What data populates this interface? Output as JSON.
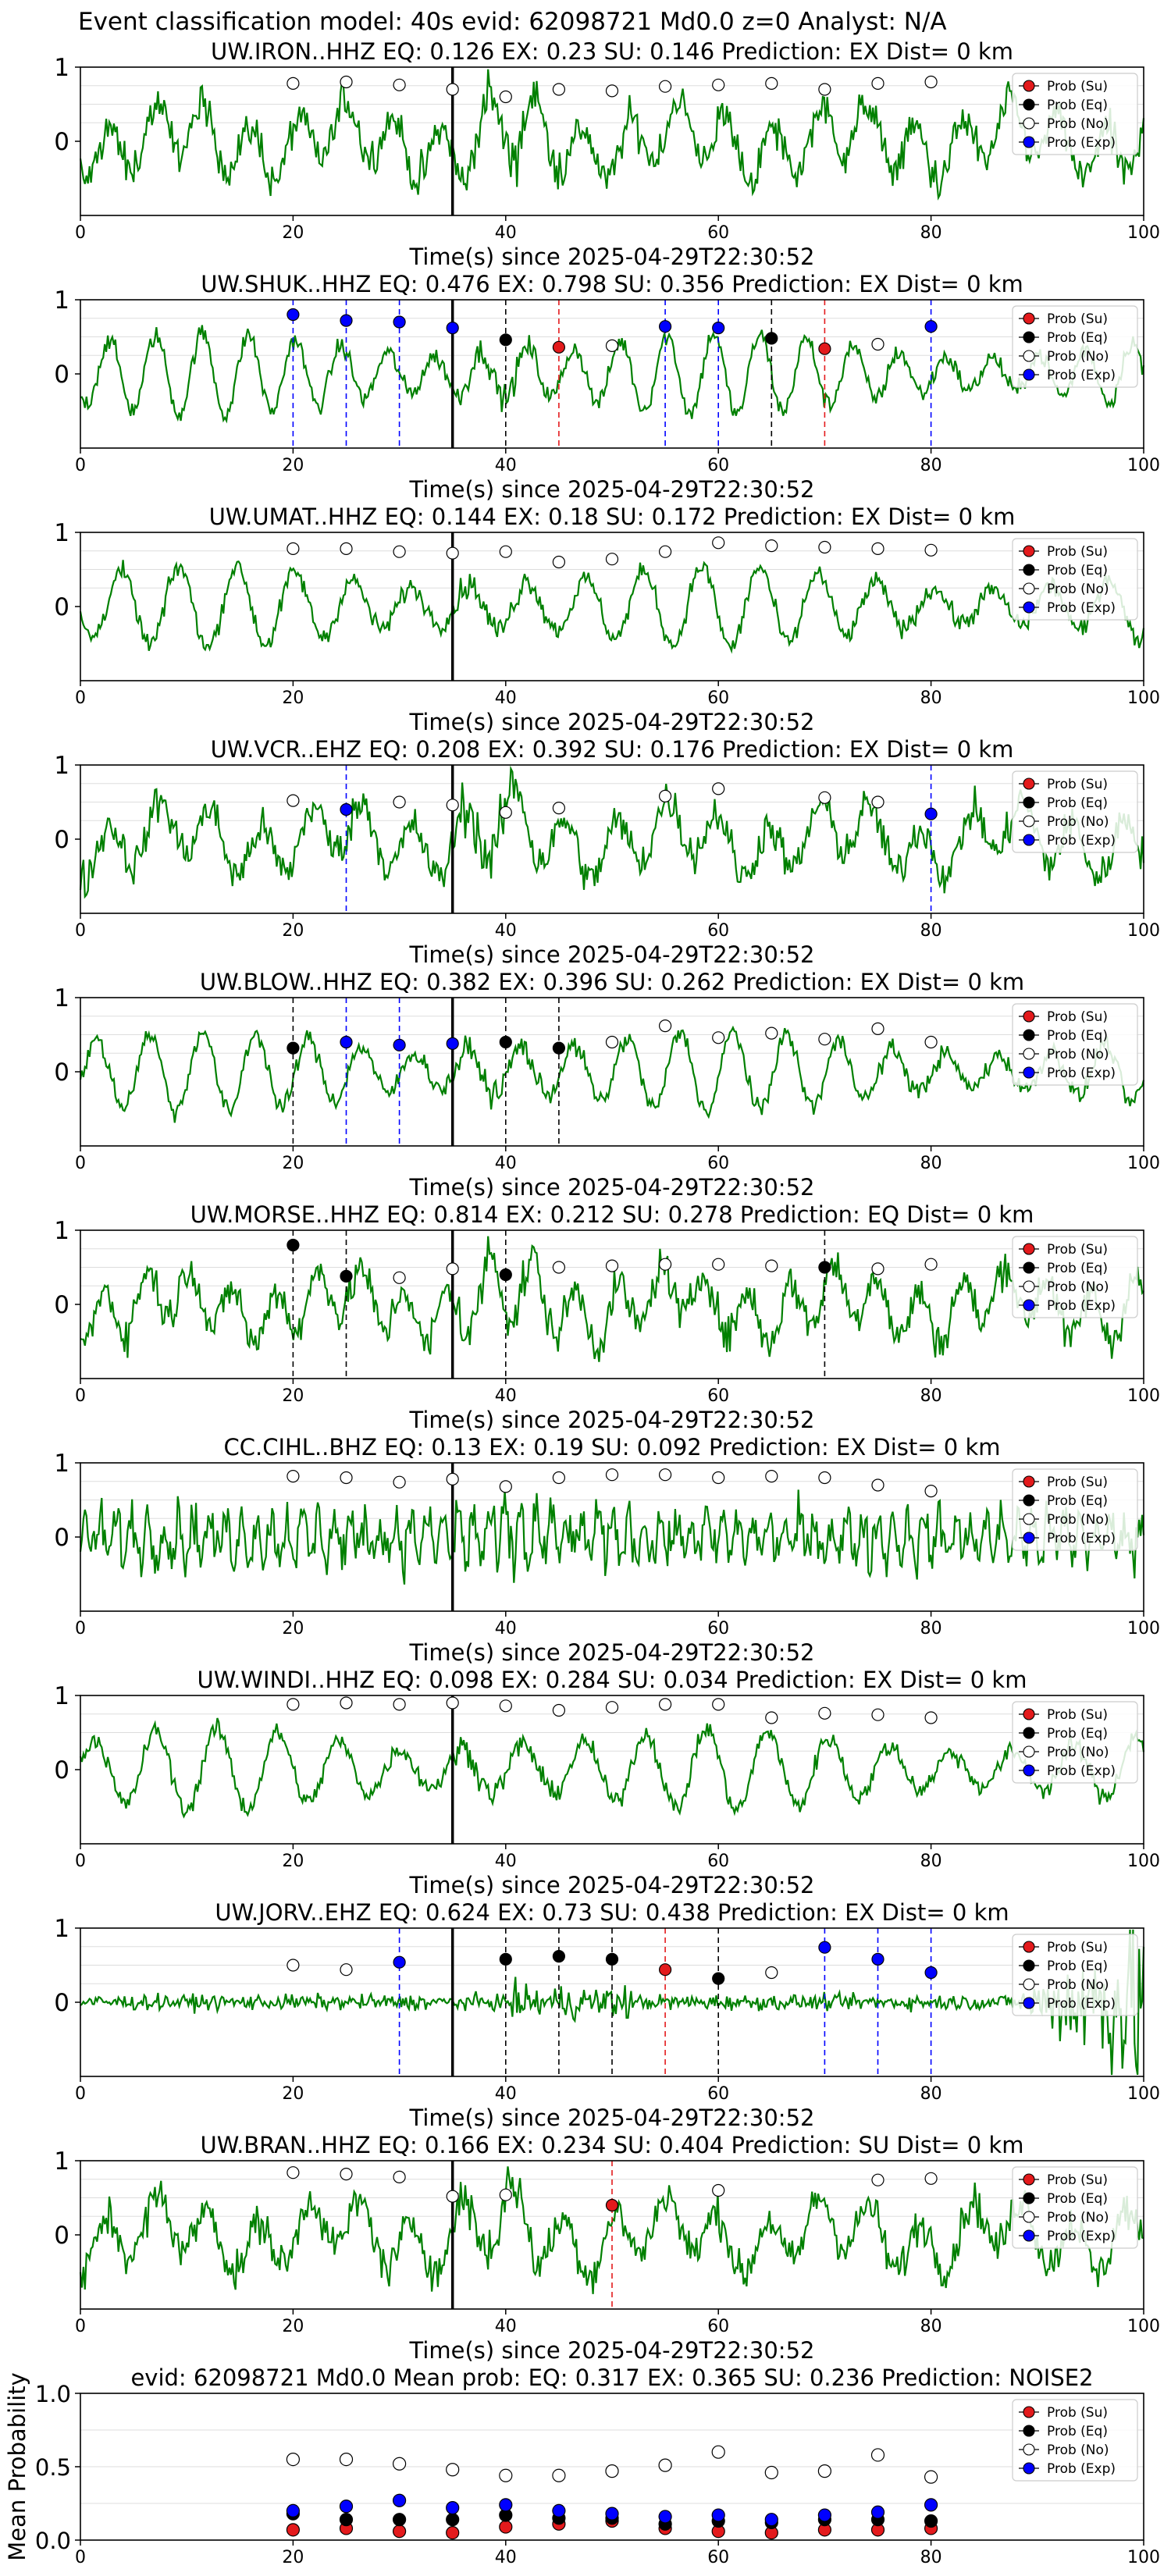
{
  "figure_title": "Event classification model: 40s evid: 62098721 Md0.0 z=0 Analyst: N/A",
  "colors": {
    "waveform": "#008000",
    "su": "#e31a1c",
    "eq": "#000000",
    "no": "#ffffff",
    "exp": "#0000ff",
    "pick": "#000000",
    "grid": "#dddddd"
  },
  "legend": [
    "Prob (Su)",
    "Prob (Eq)",
    "Prob (No)",
    "Prob (Exp)"
  ],
  "chart_data": [
    {
      "type": "line",
      "title": "UW.IRON..HHZ   EQ: 0.126   EX: 0.23   SU: 0.146   Prediction: EX    Dist= 0 km",
      "xlabel": "Time(s) since 2025-04-29T22:30:52",
      "xlim": [
        0,
        100
      ],
      "ylim": [
        -1,
        1
      ],
      "xticks": [
        "0",
        "20",
        "40",
        "60",
        "80",
        "100"
      ],
      "yticks": [
        "1",
        "0"
      ],
      "pick_time": 35,
      "waveform_style": "noisy",
      "prob_points": [
        {
          "t": 20,
          "p": 0.78,
          "cls": "no"
        },
        {
          "t": 25,
          "p": 0.8,
          "cls": "no"
        },
        {
          "t": 30,
          "p": 0.76,
          "cls": "no"
        },
        {
          "t": 35,
          "p": 0.7,
          "cls": "no"
        },
        {
          "t": 40,
          "p": 0.6,
          "cls": "no"
        },
        {
          "t": 45,
          "p": 0.7,
          "cls": "no"
        },
        {
          "t": 50,
          "p": 0.68,
          "cls": "no"
        },
        {
          "t": 55,
          "p": 0.74,
          "cls": "no"
        },
        {
          "t": 60,
          "p": 0.76,
          "cls": "no"
        },
        {
          "t": 65,
          "p": 0.78,
          "cls": "no"
        },
        {
          "t": 70,
          "p": 0.7,
          "cls": "no"
        },
        {
          "t": 75,
          "p": 0.78,
          "cls": "no"
        },
        {
          "t": 80,
          "p": 0.8,
          "cls": "no"
        }
      ]
    },
    {
      "type": "line",
      "title": "UW.SHUK..HHZ   EQ: 0.476   EX: 0.798   SU: 0.356   Prediction: EX    Dist= 0 km",
      "xlabel": "Time(s) since 2025-04-29T22:30:52",
      "xlim": [
        0,
        100
      ],
      "ylim": [
        -1,
        1
      ],
      "xticks": [
        "0",
        "20",
        "40",
        "60",
        "80",
        "100"
      ],
      "yticks": [
        "1",
        "0"
      ],
      "pick_time": 35,
      "waveform_style": "oscillating",
      "prob_points": [
        {
          "t": 20,
          "p": 0.8,
          "cls": "exp"
        },
        {
          "t": 25,
          "p": 0.72,
          "cls": "exp"
        },
        {
          "t": 30,
          "p": 0.7,
          "cls": "exp"
        },
        {
          "t": 35,
          "p": 0.62,
          "cls": "exp"
        },
        {
          "t": 40,
          "p": 0.46,
          "cls": "eq"
        },
        {
          "t": 45,
          "p": 0.36,
          "cls": "su"
        },
        {
          "t": 50,
          "p": 0.38,
          "cls": "no"
        },
        {
          "t": 55,
          "p": 0.64,
          "cls": "exp"
        },
        {
          "t": 60,
          "p": 0.62,
          "cls": "exp"
        },
        {
          "t": 65,
          "p": 0.48,
          "cls": "eq"
        },
        {
          "t": 70,
          "p": 0.34,
          "cls": "su"
        },
        {
          "t": 75,
          "p": 0.4,
          "cls": "no"
        },
        {
          "t": 80,
          "p": 0.64,
          "cls": "exp"
        }
      ]
    },
    {
      "type": "line",
      "title": "UW.UMAT..HHZ   EQ: 0.144   EX: 0.18   SU: 0.172   Prediction: EX    Dist= 0 km",
      "xlabel": "Time(s) since 2025-04-29T22:30:52",
      "xlim": [
        0,
        100
      ],
      "ylim": [
        -1,
        1
      ],
      "xticks": [
        "0",
        "20",
        "40",
        "60",
        "80",
        "100"
      ],
      "yticks": [
        "1",
        "0"
      ],
      "pick_time": 35,
      "waveform_style": "oscillating",
      "prob_points": [
        {
          "t": 20,
          "p": 0.78,
          "cls": "no"
        },
        {
          "t": 25,
          "p": 0.78,
          "cls": "no"
        },
        {
          "t": 30,
          "p": 0.74,
          "cls": "no"
        },
        {
          "t": 35,
          "p": 0.72,
          "cls": "no"
        },
        {
          "t": 40,
          "p": 0.74,
          "cls": "no"
        },
        {
          "t": 45,
          "p": 0.6,
          "cls": "no"
        },
        {
          "t": 50,
          "p": 0.64,
          "cls": "no"
        },
        {
          "t": 55,
          "p": 0.74,
          "cls": "no"
        },
        {
          "t": 60,
          "p": 0.86,
          "cls": "no"
        },
        {
          "t": 65,
          "p": 0.82,
          "cls": "no"
        },
        {
          "t": 70,
          "p": 0.8,
          "cls": "no"
        },
        {
          "t": 75,
          "p": 0.78,
          "cls": "no"
        },
        {
          "t": 80,
          "p": 0.76,
          "cls": "no"
        }
      ]
    },
    {
      "type": "line",
      "title": "UW.VCR..EHZ   EQ: 0.208   EX: 0.392   SU: 0.176   Prediction: EX    Dist= 0 km",
      "xlabel": "Time(s) since 2025-04-29T22:30:52",
      "xlim": [
        0,
        100
      ],
      "ylim": [
        -1,
        1
      ],
      "xticks": [
        "0",
        "20",
        "40",
        "60",
        "80",
        "100"
      ],
      "yticks": [
        "1",
        "0"
      ],
      "pick_time": 35,
      "waveform_style": "noisy",
      "prob_points": [
        {
          "t": 20,
          "p": 0.52,
          "cls": "no"
        },
        {
          "t": 25,
          "p": 0.4,
          "cls": "exp"
        },
        {
          "t": 30,
          "p": 0.5,
          "cls": "no"
        },
        {
          "t": 35,
          "p": 0.46,
          "cls": "no"
        },
        {
          "t": 40,
          "p": 0.36,
          "cls": "no"
        },
        {
          "t": 45,
          "p": 0.42,
          "cls": "no"
        },
        {
          "t": 55,
          "p": 0.58,
          "cls": "no"
        },
        {
          "t": 60,
          "p": 0.68,
          "cls": "no"
        },
        {
          "t": 70,
          "p": 0.56,
          "cls": "no"
        },
        {
          "t": 75,
          "p": 0.5,
          "cls": "no"
        },
        {
          "t": 80,
          "p": 0.34,
          "cls": "exp"
        }
      ]
    },
    {
      "type": "line",
      "title": "UW.BLOW..HHZ   EQ: 0.382   EX: 0.396   SU: 0.262   Prediction: EX    Dist= 0 km",
      "xlabel": "Time(s) since 2025-04-29T22:30:52",
      "xlim": [
        0,
        100
      ],
      "ylim": [
        -1,
        1
      ],
      "xticks": [
        "0",
        "20",
        "40",
        "60",
        "80",
        "100"
      ],
      "yticks": [
        "1",
        "0"
      ],
      "pick_time": 35,
      "waveform_style": "oscillating",
      "prob_points": [
        {
          "t": 20,
          "p": 0.32,
          "cls": "eq"
        },
        {
          "t": 25,
          "p": 0.4,
          "cls": "exp"
        },
        {
          "t": 30,
          "p": 0.36,
          "cls": "exp"
        },
        {
          "t": 35,
          "p": 0.38,
          "cls": "exp"
        },
        {
          "t": 40,
          "p": 0.4,
          "cls": "eq"
        },
        {
          "t": 45,
          "p": 0.32,
          "cls": "eq"
        },
        {
          "t": 50,
          "p": 0.4,
          "cls": "no"
        },
        {
          "t": 55,
          "p": 0.62,
          "cls": "no"
        },
        {
          "t": 60,
          "p": 0.46,
          "cls": "no"
        },
        {
          "t": 65,
          "p": 0.52,
          "cls": "no"
        },
        {
          "t": 70,
          "p": 0.44,
          "cls": "no"
        },
        {
          "t": 75,
          "p": 0.58,
          "cls": "no"
        },
        {
          "t": 80,
          "p": 0.4,
          "cls": "no"
        }
      ]
    },
    {
      "type": "line",
      "title": "UW.MORSE..HHZ   EQ: 0.814   EX: 0.212   SU: 0.278   Prediction: EQ    Dist= 0 km",
      "xlabel": "Time(s) since 2025-04-29T22:30:52",
      "xlim": [
        0,
        100
      ],
      "ylim": [
        -1,
        1
      ],
      "xticks": [
        "0",
        "20",
        "40",
        "60",
        "80",
        "100"
      ],
      "yticks": [
        "1",
        "0"
      ],
      "pick_time": 35,
      "waveform_style": "noisy",
      "prob_points": [
        {
          "t": 20,
          "p": 0.8,
          "cls": "eq"
        },
        {
          "t": 25,
          "p": 0.38,
          "cls": "eq"
        },
        {
          "t": 30,
          "p": 0.36,
          "cls": "no"
        },
        {
          "t": 35,
          "p": 0.48,
          "cls": "no"
        },
        {
          "t": 40,
          "p": 0.4,
          "cls": "eq"
        },
        {
          "t": 45,
          "p": 0.5,
          "cls": "no"
        },
        {
          "t": 50,
          "p": 0.52,
          "cls": "no"
        },
        {
          "t": 55,
          "p": 0.54,
          "cls": "no"
        },
        {
          "t": 60,
          "p": 0.54,
          "cls": "no"
        },
        {
          "t": 65,
          "p": 0.52,
          "cls": "no"
        },
        {
          "t": 70,
          "p": 0.5,
          "cls": "eq"
        },
        {
          "t": 75,
          "p": 0.48,
          "cls": "no"
        },
        {
          "t": 80,
          "p": 0.54,
          "cls": "no"
        }
      ]
    },
    {
      "type": "line",
      "title": "CC.CIHL..BHZ   EQ: 0.13   EX: 0.19   SU: 0.092   Prediction: EX    Dist= 0 km",
      "xlabel": "Time(s) since 2025-04-29T22:30:52",
      "xlim": [
        0,
        100
      ],
      "ylim": [
        -1,
        1
      ],
      "xticks": [
        "0",
        "20",
        "40",
        "60",
        "80",
        "100"
      ],
      "yticks": [
        "1",
        "0"
      ],
      "pick_time": 35,
      "waveform_style": "dense",
      "prob_points": [
        {
          "t": 20,
          "p": 0.82,
          "cls": "no"
        },
        {
          "t": 25,
          "p": 0.8,
          "cls": "no"
        },
        {
          "t": 30,
          "p": 0.74,
          "cls": "no"
        },
        {
          "t": 35,
          "p": 0.78,
          "cls": "no"
        },
        {
          "t": 40,
          "p": 0.68,
          "cls": "no"
        },
        {
          "t": 45,
          "p": 0.8,
          "cls": "no"
        },
        {
          "t": 50,
          "p": 0.84,
          "cls": "no"
        },
        {
          "t": 55,
          "p": 0.84,
          "cls": "no"
        },
        {
          "t": 60,
          "p": 0.8,
          "cls": "no"
        },
        {
          "t": 65,
          "p": 0.82,
          "cls": "no"
        },
        {
          "t": 70,
          "p": 0.8,
          "cls": "no"
        },
        {
          "t": 75,
          "p": 0.7,
          "cls": "no"
        },
        {
          "t": 80,
          "p": 0.62,
          "cls": "no"
        }
      ]
    },
    {
      "type": "line",
      "title": "UW.WINDI..HHZ   EQ: 0.098   EX: 0.284   SU: 0.034   Prediction: EX    Dist= 0 km",
      "xlabel": "Time(s) since 2025-04-29T22:30:52",
      "xlim": [
        0,
        100
      ],
      "ylim": [
        -1,
        1
      ],
      "xticks": [
        "0",
        "20",
        "40",
        "60",
        "80",
        "100"
      ],
      "yticks": [
        "1",
        "0"
      ],
      "pick_time": 35,
      "waveform_style": "oscillating",
      "prob_points": [
        {
          "t": 20,
          "p": 0.88,
          "cls": "no"
        },
        {
          "t": 25,
          "p": 0.9,
          "cls": "no"
        },
        {
          "t": 30,
          "p": 0.88,
          "cls": "no"
        },
        {
          "t": 35,
          "p": 0.9,
          "cls": "no"
        },
        {
          "t": 40,
          "p": 0.86,
          "cls": "no"
        },
        {
          "t": 45,
          "p": 0.8,
          "cls": "no"
        },
        {
          "t": 50,
          "p": 0.84,
          "cls": "no"
        },
        {
          "t": 55,
          "p": 0.88,
          "cls": "no"
        },
        {
          "t": 60,
          "p": 0.88,
          "cls": "no"
        },
        {
          "t": 65,
          "p": 0.7,
          "cls": "no"
        },
        {
          "t": 70,
          "p": 0.76,
          "cls": "no"
        },
        {
          "t": 75,
          "p": 0.74,
          "cls": "no"
        },
        {
          "t": 80,
          "p": 0.7,
          "cls": "no"
        }
      ]
    },
    {
      "type": "line",
      "title": "UW.JORV..EHZ   EQ: 0.624   EX: 0.73   SU: 0.438   Prediction: EX    Dist= 0 km",
      "xlabel": "Time(s) since 2025-04-29T22:30:52",
      "xlim": [
        0,
        100
      ],
      "ylim": [
        -1,
        1
      ],
      "xticks": [
        "0",
        "20",
        "40",
        "60",
        "80",
        "100"
      ],
      "yticks": [
        "1",
        "0"
      ],
      "pick_time": 35,
      "waveform_style": "quiet",
      "prob_points": [
        {
          "t": 20,
          "p": 0.5,
          "cls": "no"
        },
        {
          "t": 25,
          "p": 0.44,
          "cls": "no"
        },
        {
          "t": 30,
          "p": 0.54,
          "cls": "exp"
        },
        {
          "t": 40,
          "p": 0.58,
          "cls": "eq"
        },
        {
          "t": 45,
          "p": 0.62,
          "cls": "eq"
        },
        {
          "t": 50,
          "p": 0.58,
          "cls": "eq"
        },
        {
          "t": 55,
          "p": 0.44,
          "cls": "su"
        },
        {
          "t": 60,
          "p": 0.32,
          "cls": "eq"
        },
        {
          "t": 65,
          "p": 0.4,
          "cls": "no"
        },
        {
          "t": 70,
          "p": 0.74,
          "cls": "exp"
        },
        {
          "t": 75,
          "p": 0.58,
          "cls": "exp"
        },
        {
          "t": 80,
          "p": 0.4,
          "cls": "exp"
        }
      ]
    },
    {
      "type": "line",
      "title": "UW.BRAN..HHZ   EQ: 0.166   EX: 0.234   SU: 0.404   Prediction: SU    Dist= 0 km",
      "xlabel": "Time(s) since 2025-04-29T22:30:52",
      "xlim": [
        0,
        100
      ],
      "ylim": [
        -1,
        1
      ],
      "xticks": [
        "0",
        "20",
        "40",
        "60",
        "80",
        "100"
      ],
      "yticks": [
        "1",
        "0"
      ],
      "pick_time": 35,
      "waveform_style": "noisy",
      "prob_points": [
        {
          "t": 20,
          "p": 0.84,
          "cls": "no"
        },
        {
          "t": 25,
          "p": 0.82,
          "cls": "no"
        },
        {
          "t": 30,
          "p": 0.78,
          "cls": "no"
        },
        {
          "t": 35,
          "p": 0.52,
          "cls": "no"
        },
        {
          "t": 40,
          "p": 0.54,
          "cls": "no"
        },
        {
          "t": 50,
          "p": 0.4,
          "cls": "su"
        },
        {
          "t": 60,
          "p": 0.6,
          "cls": "no"
        },
        {
          "t": 75,
          "p": 0.74,
          "cls": "no"
        },
        {
          "t": 80,
          "p": 0.76,
          "cls": "no"
        }
      ]
    },
    {
      "type": "scatter",
      "title": "evid: 62098721   Md0.0    Mean prob:    EQ: 0.317   EX: 0.365   SU: 0.236    Prediction: NOISE2",
      "ylabel": "Mean Probability",
      "xlim": [
        0,
        100
      ],
      "ylim": [
        0,
        1
      ],
      "xticks": [
        "0",
        "20",
        "40",
        "60",
        "80",
        "100"
      ],
      "yticks": [
        "0.0",
        "0.5",
        "1.0"
      ],
      "x": [
        20,
        25,
        30,
        35,
        40,
        45,
        50,
        55,
        60,
        65,
        70,
        75,
        80
      ],
      "series": [
        {
          "name": "Prob (Su)",
          "cls": "su",
          "values": [
            0.07,
            0.08,
            0.06,
            0.05,
            0.09,
            0.11,
            0.13,
            0.08,
            0.06,
            0.05,
            0.07,
            0.07,
            0.08
          ]
        },
        {
          "name": "Prob (Eq)",
          "cls": "eq",
          "values": [
            0.18,
            0.14,
            0.14,
            0.14,
            0.17,
            0.15,
            0.15,
            0.11,
            0.13,
            0.12,
            0.14,
            0.14,
            0.13
          ]
        },
        {
          "name": "Prob (No)",
          "cls": "no",
          "values": [
            0.55,
            0.55,
            0.52,
            0.48,
            0.44,
            0.44,
            0.47,
            0.51,
            0.6,
            0.46,
            0.47,
            0.58,
            0.43
          ]
        },
        {
          "name": "Prob (Exp)",
          "cls": "exp",
          "values": [
            0.2,
            0.23,
            0.27,
            0.22,
            0.24,
            0.2,
            0.18,
            0.16,
            0.17,
            0.14,
            0.17,
            0.19,
            0.24
          ]
        }
      ]
    }
  ]
}
